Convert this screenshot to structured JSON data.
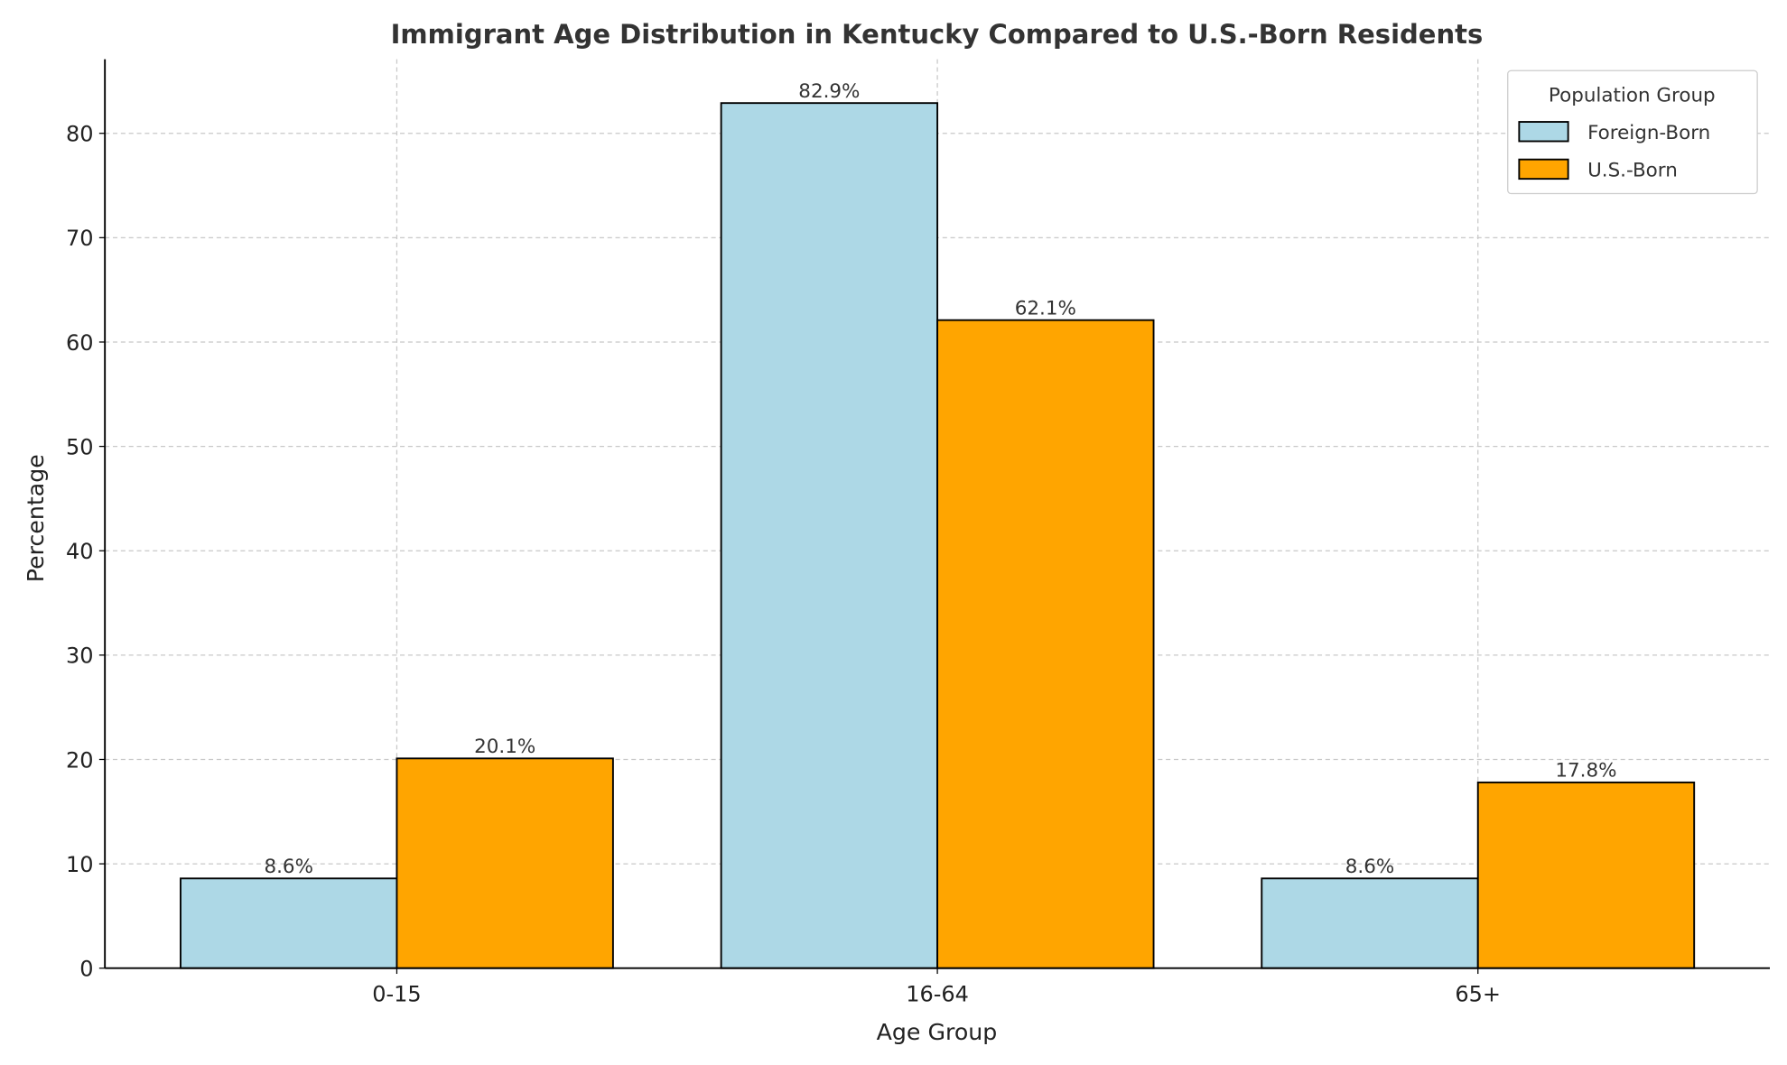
{
  "chart_data": {
    "type": "bar",
    "title": "Immigrant Age Distribution in Kentucky Compared to U.S.-Born Residents",
    "xlabel": "Age Group",
    "ylabel": "Percentage",
    "categories": [
      "0-15",
      "16-64",
      "65+"
    ],
    "series": [
      {
        "name": "Foreign-Born",
        "values": [
          8.6,
          82.9,
          8.6
        ],
        "labels": [
          "8.6%",
          "82.9%",
          "8.6%"
        ],
        "color": "#add8e6"
      },
      {
        "name": "U.S.-Born",
        "values": [
          20.1,
          62.1,
          17.8
        ],
        "labels": [
          "20.1%",
          "62.1%",
          "17.8%"
        ],
        "color": "#ffa500"
      }
    ],
    "ylim": [
      0,
      87.1
    ],
    "yticks": [
      "0",
      "10",
      "20",
      "30",
      "40",
      "50",
      "60",
      "70",
      "80"
    ],
    "grid": true,
    "legend": {
      "title": "Population Group",
      "placement": "top-right"
    }
  }
}
